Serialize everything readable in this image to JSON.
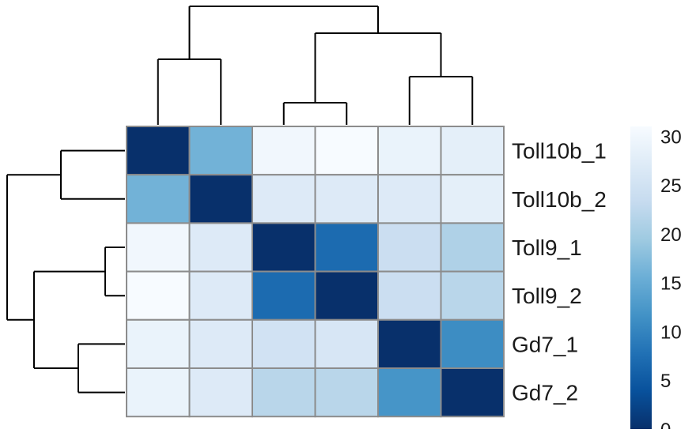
{
  "chart_data": {
    "type": "heatmap",
    "title": "",
    "rows": [
      "Toll10b_1",
      "Toll10b_2",
      "Toll9_1",
      "Toll9_2",
      "Gd7_1",
      "Gd7_2"
    ],
    "columns": [
      "Toll10b_1",
      "Toll10b_2",
      "Toll9_1",
      "Toll9_2",
      "Gd7_1",
      "Gd7_2"
    ],
    "values": [
      [
        0,
        16,
        30,
        31,
        29,
        28
      ],
      [
        16,
        0,
        27,
        27,
        27,
        28
      ],
      [
        30,
        27,
        0,
        7,
        24,
        21
      ],
      [
        31,
        27,
        7,
        0,
        24,
        22
      ],
      [
        29,
        27,
        25,
        26,
        0,
        11
      ],
      [
        29,
        27,
        22,
        22,
        12,
        0
      ]
    ],
    "colorbar": {
      "min": 0,
      "max": 31,
      "ticks": [
        0,
        5,
        10,
        15,
        20,
        25,
        30
      ],
      "colors": [
        "#08306b",
        "#08519c",
        "#2171b5",
        "#4292c6",
        "#6baed6",
        "#9ecae1",
        "#c6dbef",
        "#deebf7",
        "#f7fbff"
      ]
    },
    "row_dendrogram": true,
    "column_dendrogram": true,
    "legend_position": "right"
  }
}
